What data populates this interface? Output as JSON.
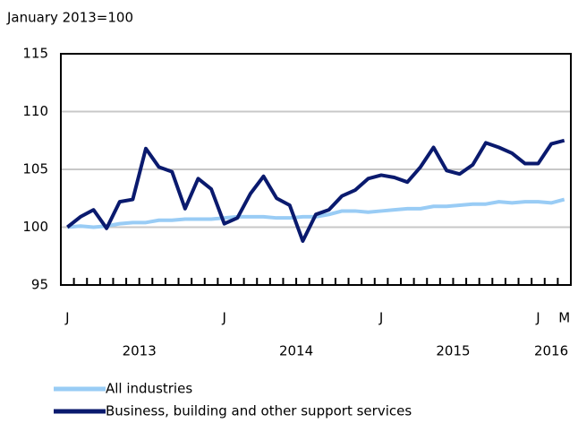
{
  "chart_data": {
    "type": "line",
    "y_axis_label": "January 2013=100",
    "categories": [
      "J",
      null,
      null,
      null,
      null,
      null,
      null,
      null,
      null,
      null,
      null,
      null,
      "J",
      null,
      null,
      null,
      null,
      null,
      null,
      null,
      null,
      null,
      null,
      null,
      "J",
      null,
      null,
      null,
      null,
      null,
      null,
      null,
      null,
      null,
      null,
      null,
      "J",
      null,
      "M"
    ],
    "years": [
      "2013",
      "2014",
      "2015",
      "2016"
    ],
    "series": [
      {
        "name": "All industries",
        "color": "#99ccf5",
        "values": [
          100.0,
          100.1,
          100.0,
          100.1,
          100.3,
          100.4,
          100.4,
          100.6,
          100.6,
          100.7,
          100.7,
          100.7,
          100.8,
          100.9,
          100.9,
          100.9,
          100.8,
          100.8,
          100.9,
          100.9,
          101.1,
          101.4,
          101.4,
          101.3,
          101.4,
          101.5,
          101.6,
          101.6,
          101.8,
          101.8,
          101.9,
          102.0,
          102.0,
          102.2,
          102.1,
          102.2,
          102.2,
          102.1,
          102.4
        ]
      },
      {
        "name": "Business, building and other support services",
        "color": "#0a1a6e",
        "values": [
          100.0,
          100.9,
          101.5,
          99.9,
          102.2,
          102.4,
          106.8,
          105.2,
          104.8,
          101.6,
          104.2,
          103.3,
          100.3,
          100.8,
          102.9,
          104.4,
          102.5,
          101.9,
          98.8,
          101.1,
          101.5,
          102.7,
          103.2,
          104.2,
          104.5,
          104.3,
          103.9,
          105.2,
          106.9,
          104.9,
          104.6,
          105.4,
          107.3,
          106.9,
          106.4,
          105.5,
          105.5,
          107.2,
          107.5
        ]
      }
    ],
    "ylim": [
      95,
      115
    ],
    "yticks": [
      95,
      100,
      105,
      110,
      115
    ],
    "grid": true
  }
}
